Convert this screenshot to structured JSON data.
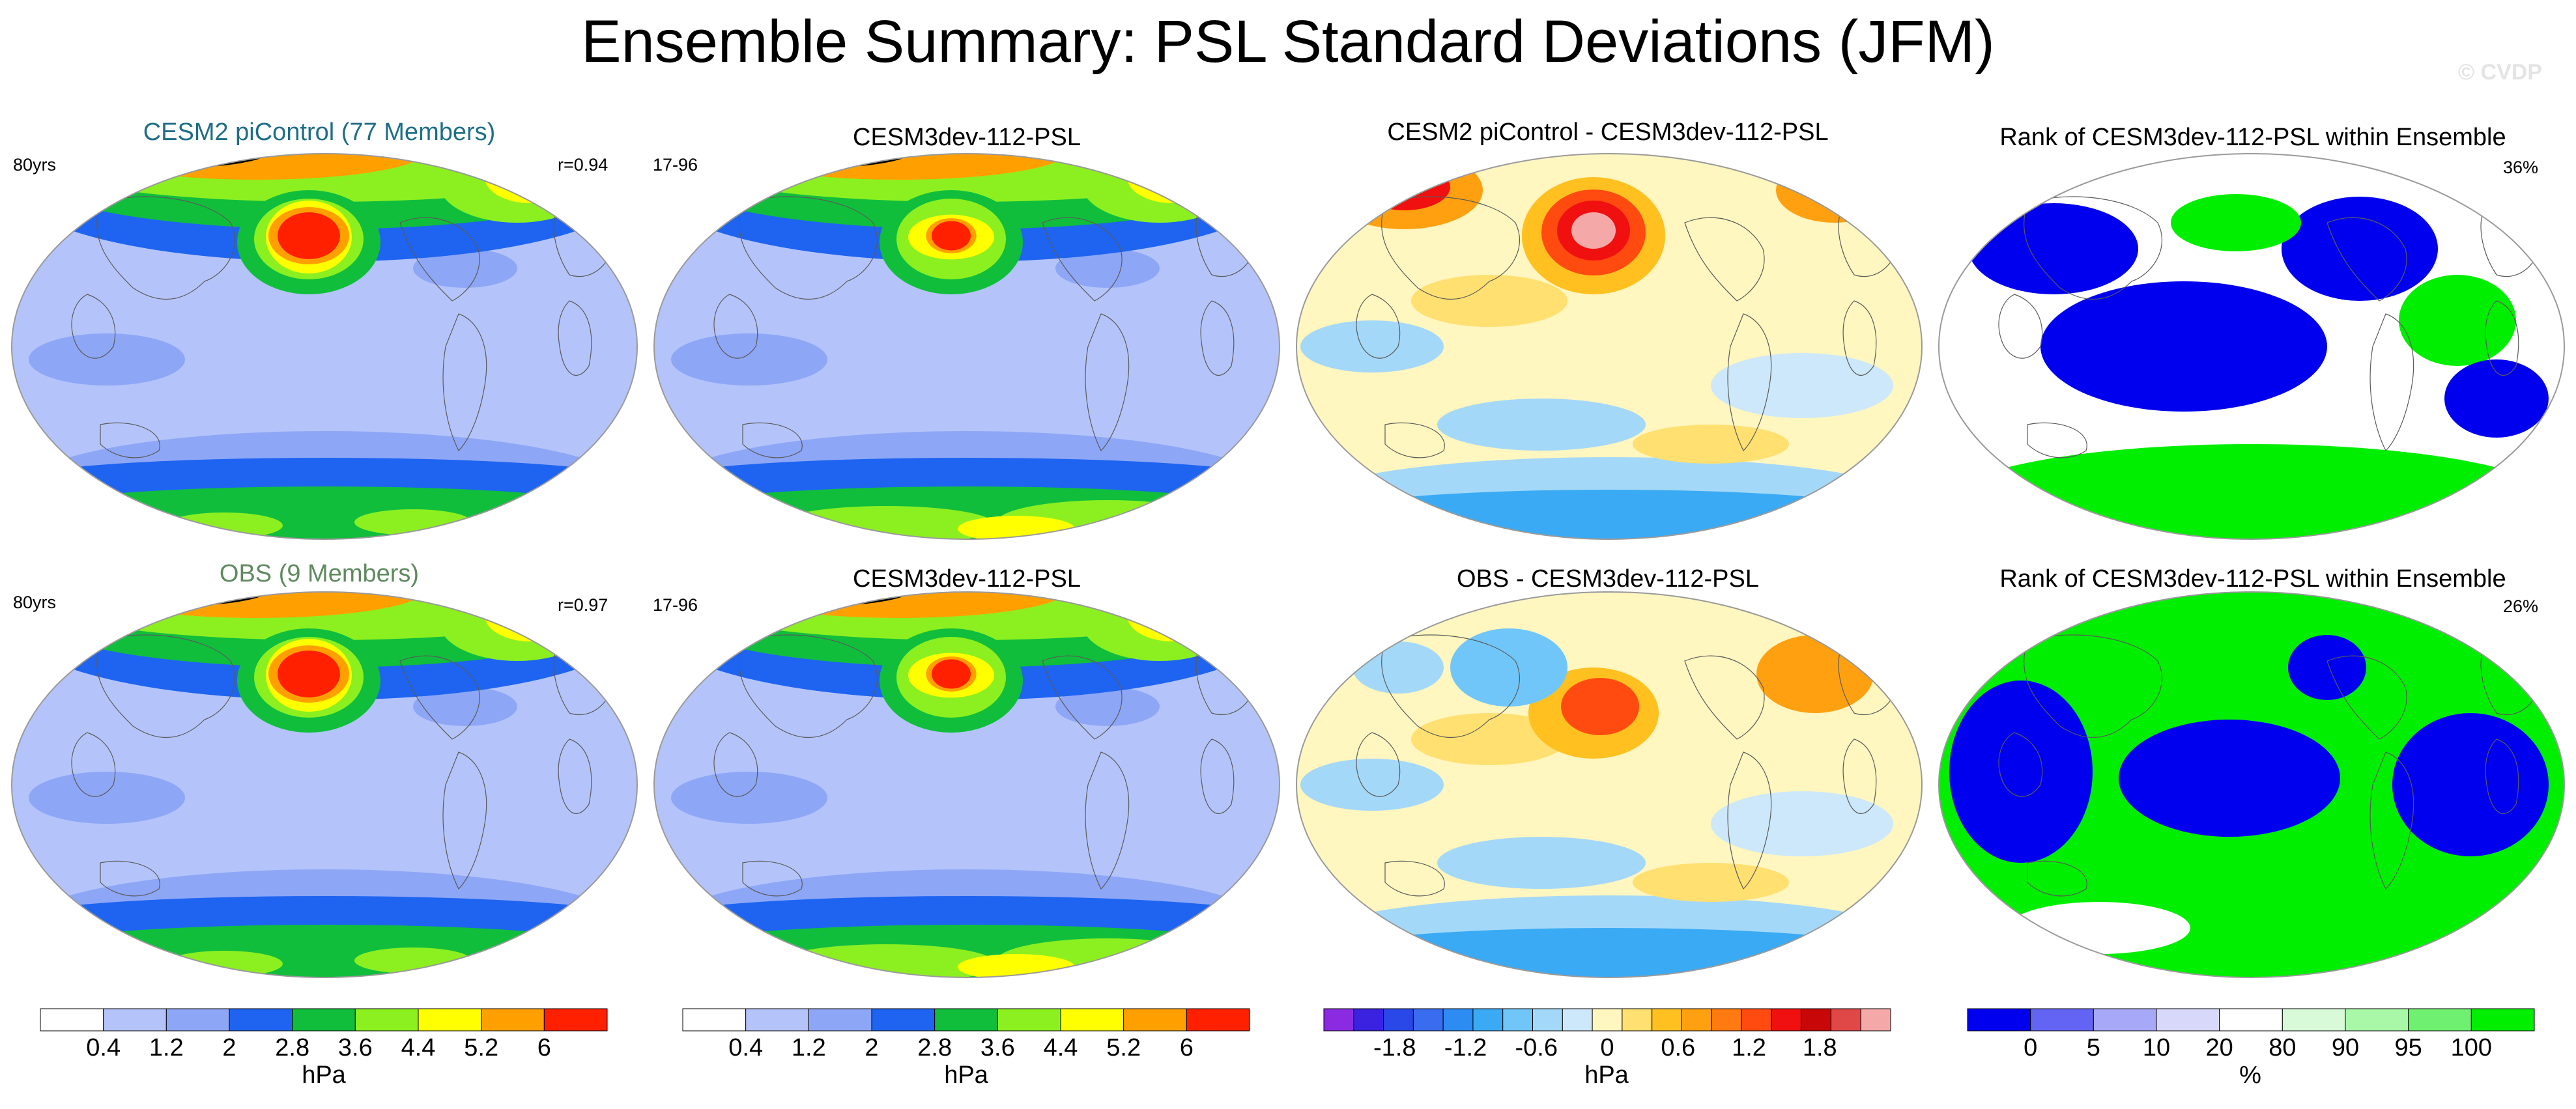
{
  "title": "Ensemble Summary: PSL Standard Deviations (JFM)",
  "watermark": "© CVDP",
  "panels": [
    {
      "title": "CESM2 piControl (77 Members)",
      "title_color": "#1f6e88",
      "left_label": "80yrs",
      "right_label": "r=0.94",
      "kind": "std"
    },
    {
      "title": "CESM3dev-112-PSL",
      "title_color": "#000000",
      "left_label": "17-96",
      "right_label": "",
      "kind": "std"
    },
    {
      "title": "CESM2 piControl - CESM3dev-112-PSL",
      "title_color": "#000000",
      "left_label": "",
      "right_label": "",
      "kind": "diff"
    },
    {
      "title": "Rank of CESM3dev-112-PSL within Ensemble",
      "title_color": "#000000",
      "left_label": "",
      "right_label": "36%",
      "kind": "rank"
    },
    {
      "title": "OBS (9 Members)",
      "title_color": "#5f8a5f",
      "left_label": "80yrs",
      "right_label": "r=0.97",
      "kind": "std"
    },
    {
      "title": "CESM3dev-112-PSL",
      "title_color": "#000000",
      "left_label": "17-96",
      "right_label": "",
      "kind": "std"
    },
    {
      "title": "OBS - CESM3dev-112-PSL",
      "title_color": "#000000",
      "left_label": "",
      "right_label": "",
      "kind": "diff"
    },
    {
      "title": "Rank of CESM3dev-112-PSL within Ensemble",
      "title_color": "#000000",
      "left_label": "",
      "right_label": "26%",
      "kind": "rank"
    }
  ],
  "colorbars": [
    {
      "unit": "hPa",
      "colors": [
        "#ffffff",
        "#b4c4fa",
        "#8ea6f6",
        "#1e64f0",
        "#10be3c",
        "#8cf020",
        "#ffff00",
        "#ffa000",
        "#ff2000"
      ],
      "ticks": [
        "0.4",
        "1.2",
        "2",
        "2.8",
        "3.6",
        "4.4",
        "5.2",
        "6"
      ]
    },
    {
      "unit": "hPa",
      "colors": [
        "#ffffff",
        "#b4c4fa",
        "#8ea6f6",
        "#1e64f0",
        "#10be3c",
        "#8cf020",
        "#ffff00",
        "#ffa000",
        "#ff2000"
      ],
      "ticks": [
        "0.4",
        "1.2",
        "2",
        "2.8",
        "3.6",
        "4.4",
        "5.2",
        "6"
      ]
    },
    {
      "unit": "hPa",
      "colors": [
        "#8a2be2",
        "#3a22e0",
        "#2a48e8",
        "#3a6cf0",
        "#2c8cf2",
        "#3aaaf4",
        "#70c6f8",
        "#a4d8f8",
        "#cce8fa",
        "#fff6c0",
        "#ffe070",
        "#ffc020",
        "#ffa010",
        "#ff7a10",
        "#ff4a10",
        "#f01010",
        "#c80808",
        "#e04848",
        "#f4a8a8"
      ],
      "ticks": [
        "-1.8",
        "-1.2",
        "-0.6",
        "0",
        "0.6",
        "1.2",
        "1.8"
      ]
    },
    {
      "unit": "%",
      "colors": [
        "#0000ee",
        "#6464f4",
        "#a8a8f8",
        "#d8d8fa",
        "#ffffff",
        "#d8fad8",
        "#a8f8a8",
        "#70f070",
        "#00ee00"
      ],
      "ticks": [
        "0",
        "5",
        "10",
        "20",
        "80",
        "90",
        "95",
        "100"
      ]
    }
  ],
  "colors": {
    "std_levels": [
      "#b4c4fa",
      "#8ea6f6",
      "#1e64f0",
      "#10be3c",
      "#8cf020",
      "#ffff00",
      "#ffa000",
      "#ff2000"
    ],
    "diff_neg": "#3a6cf0",
    "diff_pos": "#f01010",
    "rank_low": "#0000ee",
    "rank_high": "#00ee00"
  }
}
